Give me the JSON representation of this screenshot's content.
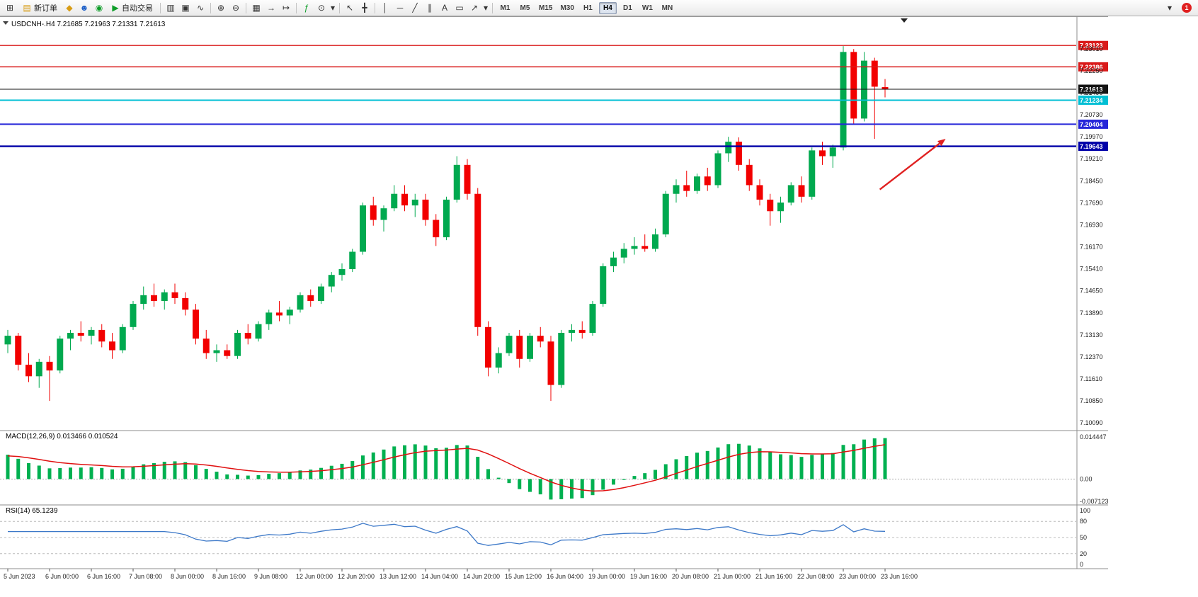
{
  "toolbar": {
    "new_order_label": "新订单",
    "auto_trading_label": "自动交易",
    "timeframe_label_group": [
      "M1",
      "M5",
      "M15",
      "M30",
      "H1",
      "H4",
      "D1",
      "W1",
      "MN"
    ],
    "active_timeframe": "H4",
    "notification_badge": "1"
  },
  "icons": {
    "new-chart": "⊞",
    "new-order-doc": "▤",
    "profiles": "◆",
    "community": "☻",
    "support": "◉",
    "auto-trading-play": "▶",
    "bar-chart": "▥",
    "candlestick-chart": "▣",
    "line-chart": "∿",
    "zoom-in": "⊕",
    "zoom-out": "⊖",
    "tile-windows": "▦",
    "auto-scroll": "→",
    "chart-shift": "↦",
    "indicators": "ƒ",
    "periods": "⊙",
    "caret": "▾",
    "cursor": "↖",
    "crosshair": "╋",
    "vertical-line": "│",
    "horizontal-line": "─",
    "trendline": "╱",
    "channel": "∥",
    "text-tool": "A",
    "shapes": "▭",
    "arrow-tool": "↗"
  },
  "chart": {
    "symbol": "USDCNH-",
    "timeframe": "H4",
    "title": "USDCNH-.H4",
    "ohlc": {
      "open": "7.21685",
      "high": "7.21963",
      "low": "7.21331",
      "close": "7.21613"
    },
    "price_axis_labels": [
      "7.23010",
      "7.22250",
      "7.21490",
      "7.20730",
      "7.19970",
      "7.19210",
      "7.18450",
      "7.17690",
      "7.16930",
      "7.16170",
      "7.15410",
      "7.14650",
      "7.13890",
      "7.13130",
      "7.12370",
      "7.11610",
      "7.10850",
      "7.10090"
    ],
    "time_axis_labels": [
      "5 Jun 2023",
      "6 Jun 00:00",
      "6 Jun 16:00",
      "7 Jun 08:00",
      "8 Jun 00:00",
      "8 Jun 16:00",
      "9 Jun 08:00",
      "12 Jun 00:00",
      "12 Jun 20:00",
      "13 Jun 12:00",
      "14 Jun 04:00",
      "14 Jun 20:00",
      "15 Jun 12:00",
      "16 Jun 04:00",
      "19 Jun 00:00",
      "19 Jun 16:00",
      "20 Jun 08:00",
      "21 Jun 00:00",
      "21 Jun 16:00",
      "22 Jun 08:00",
      "23 Jun 00:00",
      "23 Jun 16:00"
    ],
    "levels": [
      {
        "name": "resistance-upper",
        "label": "7.23123",
        "price": 7.23123,
        "color": "#d91a1a",
        "stroke_width": 1.4
      },
      {
        "name": "resistance-lower",
        "label": "7.22386",
        "price": 7.22386,
        "color": "#d91a1a",
        "stroke_width": 1.4
      },
      {
        "name": "bid-price-line",
        "label": "7.21613",
        "price": 7.21613,
        "color": "#141414",
        "stroke_width": 1
      },
      {
        "name": "level-cyan",
        "label": "7.21234",
        "price": 7.21234,
        "color": "#00bfd4",
        "stroke_width": 2
      },
      {
        "name": "support-upper",
        "label": "7.20404",
        "price": 7.20404,
        "color": "#2626d9",
        "stroke_width": 2
      },
      {
        "name": "support-lower",
        "label": "7.19643",
        "price": 7.19643,
        "color": "#0000a8",
        "stroke_width": 2.4
      }
    ],
    "arrow_annotation": {
      "color": "#e02020",
      "from_bar": 83.5,
      "from_price": 7.1815,
      "to_bar": 89.8,
      "to_price": 7.199
    }
  },
  "chart_data": {
    "type": "candlestick",
    "symbol": "USDCNH-",
    "timeframe": "H4",
    "up_color": "#00a94f",
    "down_color": "#f20000",
    "price_range": [
      7.0985,
      7.2352
    ],
    "label_every_n_bars": 4,
    "candles": [
      [
        7.128,
        7.133,
        7.125,
        7.131
      ],
      [
        7.131,
        7.132,
        7.119,
        7.121
      ],
      [
        7.121,
        7.125,
        7.115,
        7.117
      ],
      [
        7.117,
        7.123,
        7.113,
        7.122
      ],
      [
        7.122,
        7.124,
        7.1085,
        7.119
      ],
      [
        7.119,
        7.131,
        7.118,
        7.13
      ],
      [
        7.13,
        7.133,
        7.126,
        7.132
      ],
      [
        7.132,
        7.136,
        7.129,
        7.131
      ],
      [
        7.131,
        7.134,
        7.128,
        7.133
      ],
      [
        7.133,
        7.135,
        7.127,
        7.129
      ],
      [
        7.129,
        7.132,
        7.123,
        7.126
      ],
      [
        7.126,
        7.135,
        7.125,
        7.134
      ],
      [
        7.134,
        7.143,
        7.133,
        7.142
      ],
      [
        7.142,
        7.148,
        7.14,
        7.145
      ],
      [
        7.145,
        7.149,
        7.141,
        7.143
      ],
      [
        7.143,
        7.147,
        7.14,
        7.146
      ],
      [
        7.146,
        7.149,
        7.142,
        7.144
      ],
      [
        7.144,
        7.146,
        7.138,
        7.14
      ],
      [
        7.14,
        7.142,
        7.128,
        7.13
      ],
      [
        7.13,
        7.133,
        7.123,
        7.125
      ],
      [
        7.125,
        7.128,
        7.122,
        7.126
      ],
      [
        7.126,
        7.128,
        7.123,
        7.124
      ],
      [
        7.124,
        7.133,
        7.123,
        7.132
      ],
      [
        7.132,
        7.135,
        7.128,
        7.13
      ],
      [
        7.13,
        7.136,
        7.129,
        7.135
      ],
      [
        7.135,
        7.14,
        7.133,
        7.139
      ],
      [
        7.139,
        7.143,
        7.136,
        7.138
      ],
      [
        7.138,
        7.141,
        7.135,
        7.14
      ],
      [
        7.14,
        7.146,
        7.139,
        7.145
      ],
      [
        7.145,
        7.147,
        7.141,
        7.143
      ],
      [
        7.143,
        7.149,
        7.142,
        7.148
      ],
      [
        7.148,
        7.153,
        7.146,
        7.152
      ],
      [
        7.152,
        7.156,
        7.15,
        7.154
      ],
      [
        7.154,
        7.161,
        7.153,
        7.16
      ],
      [
        7.16,
        7.177,
        7.159,
        7.176
      ],
      [
        7.176,
        7.179,
        7.169,
        7.171
      ],
      [
        7.171,
        7.176,
        7.167,
        7.175
      ],
      [
        7.175,
        7.183,
        7.174,
        7.18
      ],
      [
        7.18,
        7.183,
        7.174,
        7.176
      ],
      [
        7.176,
        7.18,
        7.172,
        7.178
      ],
      [
        7.178,
        7.18,
        7.169,
        7.171
      ],
      [
        7.171,
        7.173,
        7.162,
        7.165
      ],
      [
        7.165,
        7.179,
        7.164,
        7.178
      ],
      [
        7.178,
        7.193,
        7.177,
        7.19
      ],
      [
        7.19,
        7.192,
        7.178,
        7.18
      ],
      [
        7.18,
        7.182,
        7.131,
        7.134
      ],
      [
        7.134,
        7.136,
        7.117,
        7.12
      ],
      [
        7.12,
        7.127,
        7.118,
        7.125
      ],
      [
        7.125,
        7.132,
        7.124,
        7.131
      ],
      [
        7.131,
        7.133,
        7.12,
        7.123
      ],
      [
        7.123,
        7.132,
        7.122,
        7.131
      ],
      [
        7.131,
        7.134,
        7.127,
        7.129
      ],
      [
        7.129,
        7.131,
        7.1085,
        7.114
      ],
      [
        7.114,
        7.133,
        7.113,
        7.132
      ],
      [
        7.132,
        7.135,
        7.129,
        7.133
      ],
      [
        7.133,
        7.136,
        7.13,
        7.132
      ],
      [
        7.132,
        7.143,
        7.131,
        7.142
      ],
      [
        7.142,
        7.156,
        7.141,
        7.155
      ],
      [
        7.155,
        7.16,
        7.153,
        7.158
      ],
      [
        7.158,
        7.163,
        7.156,
        7.161
      ],
      [
        7.161,
        7.165,
        7.159,
        7.162
      ],
      [
        7.162,
        7.166,
        7.16,
        7.161
      ],
      [
        7.161,
        7.168,
        7.16,
        7.166
      ],
      [
        7.166,
        7.181,
        7.165,
        7.18
      ],
      [
        7.18,
        7.185,
        7.177,
        7.183
      ],
      [
        7.183,
        7.188,
        7.179,
        7.181
      ],
      [
        7.181,
        7.187,
        7.18,
        7.186
      ],
      [
        7.186,
        7.189,
        7.181,
        7.183
      ],
      [
        7.183,
        7.195,
        7.182,
        7.194
      ],
      [
        7.194,
        7.1997,
        7.191,
        7.198
      ],
      [
        7.198,
        7.1995,
        7.188,
        7.19
      ],
      [
        7.19,
        7.192,
        7.181,
        7.183
      ],
      [
        7.183,
        7.185,
        7.176,
        7.178
      ],
      [
        7.178,
        7.18,
        7.169,
        7.174
      ],
      [
        7.174,
        7.179,
        7.17,
        7.177
      ],
      [
        7.177,
        7.184,
        7.176,
        7.183
      ],
      [
        7.183,
        7.186,
        7.177,
        7.179
      ],
      [
        7.179,
        7.196,
        7.178,
        7.195
      ],
      [
        7.195,
        7.198,
        7.19,
        7.193
      ],
      [
        7.193,
        7.197,
        7.189,
        7.196
      ],
      [
        7.196,
        7.231,
        7.195,
        7.229
      ],
      [
        7.229,
        7.23,
        7.204,
        7.206
      ],
      [
        7.206,
        7.229,
        7.205,
        7.226
      ],
      [
        7.226,
        7.227,
        7.199,
        7.217
      ],
      [
        7.21685,
        7.21963,
        7.21331,
        7.21613
      ]
    ]
  },
  "macd": {
    "title": "MACD(12,26,9)",
    "current_values": "0.013466 0.010524",
    "fast_ema": 12,
    "slow_ema": 26,
    "signal_period": 9,
    "axis_labels": [
      "0.014447",
      "0.00",
      "-0.007123"
    ],
    "histogram_color": "#00b050",
    "signal_color": "#e01010"
  },
  "rsi": {
    "title": "RSI(14)",
    "current_value": "65.1239",
    "period": 14,
    "axis_labels": [
      "100",
      "80",
      "50",
      "20",
      "0"
    ],
    "level_lines": [
      80,
      50,
      20
    ],
    "line_color": "#3c78c8"
  }
}
